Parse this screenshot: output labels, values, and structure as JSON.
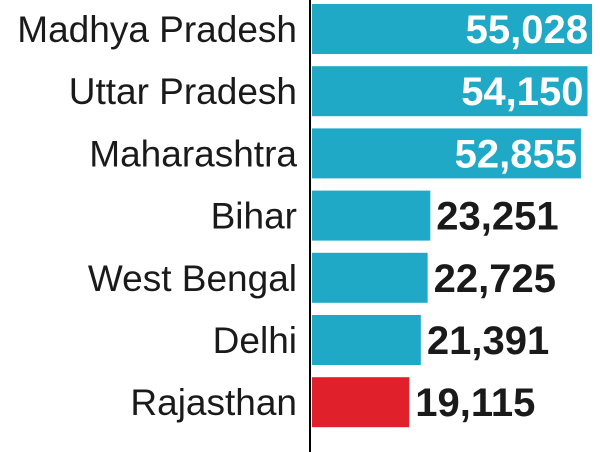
{
  "chart_data": {
    "type": "bar",
    "orientation": "horizontal",
    "categories": [
      "Madhya Pradesh",
      "Uttar Pradesh",
      "Maharashtra",
      "Bihar",
      "West Bengal",
      "Delhi",
      "Rajasthan"
    ],
    "values": [
      55028,
      54150,
      52855,
      23251,
      22725,
      21391,
      19115
    ],
    "value_labels": [
      "55,028",
      "54,150",
      "52,855",
      "23,251",
      "22,725",
      "21,391",
      "19,115"
    ],
    "highlight": "Rajasthan",
    "xlim": [
      0,
      55028
    ],
    "title": "",
    "xlabel": "",
    "ylabel": ""
  },
  "colors": {
    "bar": "#1fa9c6",
    "highlight_bar": "#e0202a",
    "label": "#1a1a1a",
    "highlight_label": "#e0202a",
    "value_inside": "#ffffff",
    "value_outside": "#1a1a1a",
    "axis_line": "#000000"
  }
}
